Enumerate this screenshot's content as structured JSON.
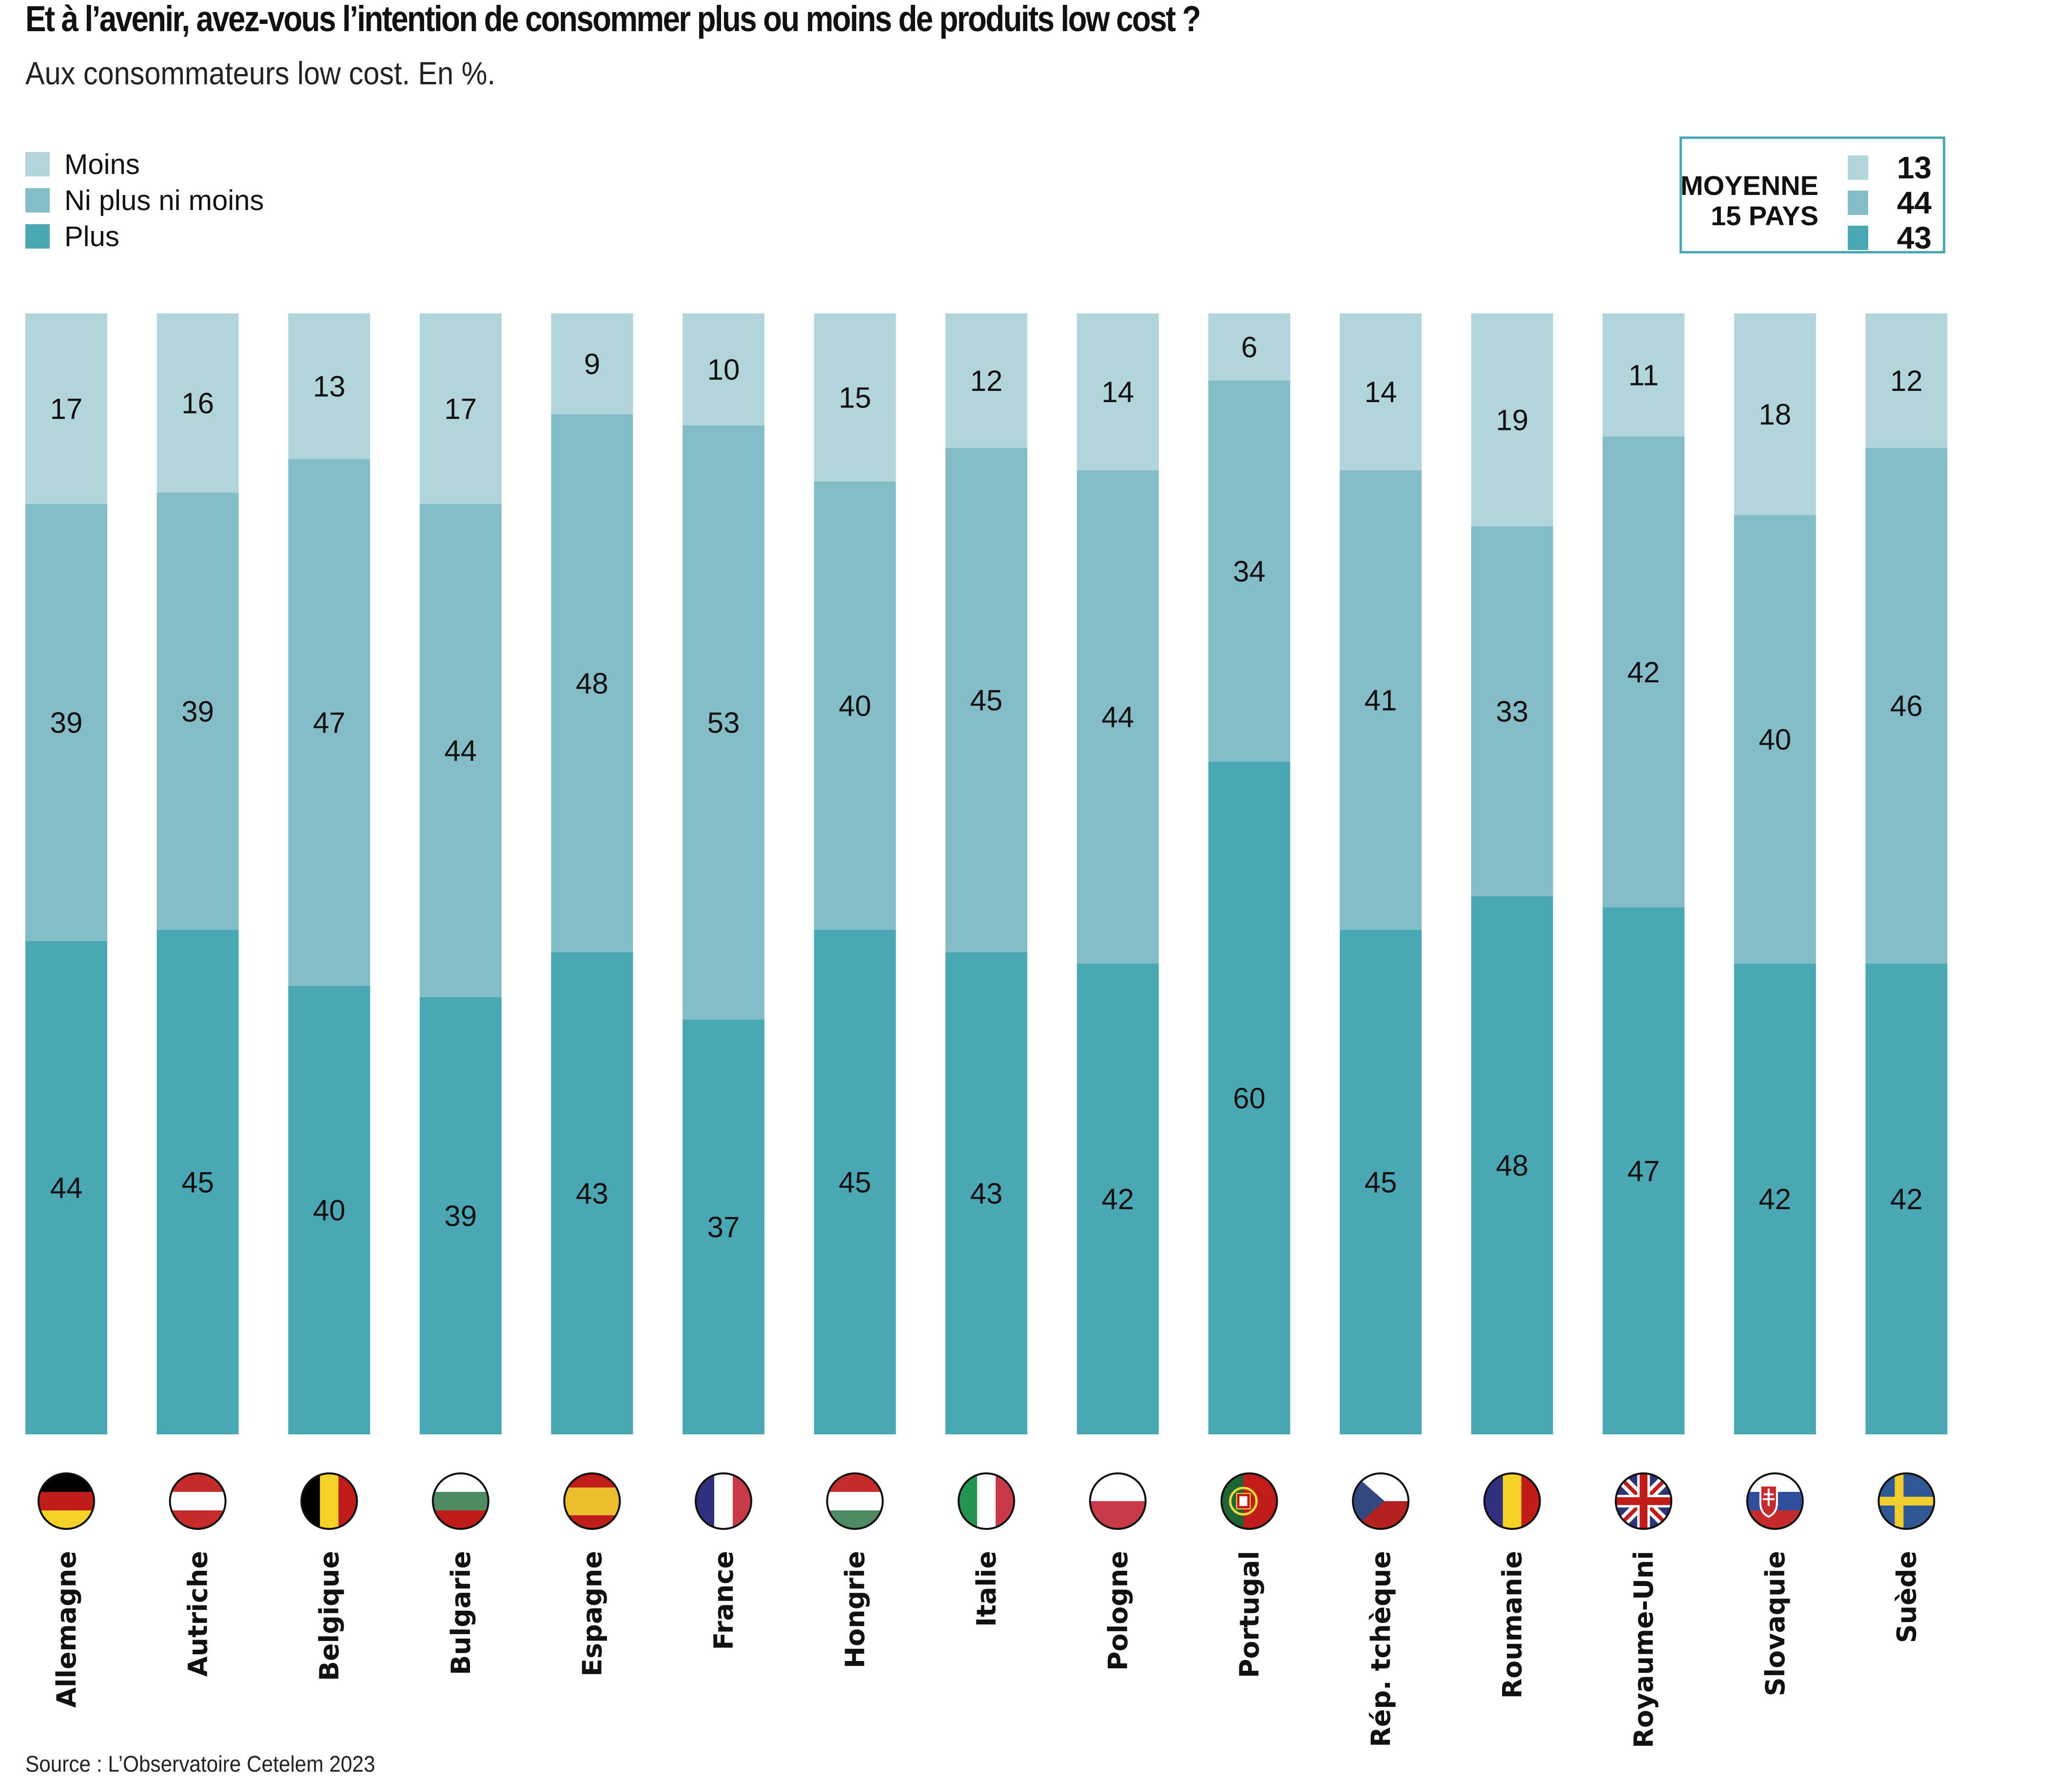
{
  "header": {
    "title": "Et à l’avenir, avez-vous l’intention de consommer plus ou moins de produits low cost ?",
    "subtitle": "Aux consommateurs low cost. En %."
  },
  "legend": [
    {
      "label": "Moins",
      "color": "#b2d5db"
    },
    {
      "label": "Ni plus ni moins",
      "color": "#84bdc7"
    },
    {
      "label": "Plus",
      "color": "#4aa8b5"
    }
  ],
  "average_box": {
    "title_line1": "MOYENNE",
    "title_line2": "15 PAYS",
    "border_color": "#4aa8b5",
    "values": [
      {
        "series": "Moins",
        "value": "13"
      },
      {
        "series": "Ni plus ni moins",
        "value": "44"
      },
      {
        "series": "Plus",
        "value": "43"
      }
    ]
  },
  "footer": {
    "source": "Source : L’Observatoire Cetelem 2023"
  },
  "chart_data": {
    "type": "bar",
    "stacked": true,
    "orientation": "vertical",
    "title": "Et à l’avenir, avez-vous l’intention de consommer plus ou moins de produits low cost ?",
    "subtitle": "Aux consommateurs low cost. En %.",
    "xlabel": "",
    "ylabel": "",
    "ylim": [
      0,
      100
    ],
    "grid": false,
    "legend_position": "top-left",
    "categories": [
      "Allemagne",
      "Autriche",
      "Belgique",
      "Bulgarie",
      "Espagne",
      "France",
      "Hongrie",
      "Italie",
      "Pologne",
      "Portugal",
      "Rép. tchèque",
      "Roumanie",
      "Royaume-Uni",
      "Slovaquie",
      "Suède"
    ],
    "flags": [
      "flag-de",
      "flag-at",
      "flag-be",
      "flag-bg",
      "flag-es",
      "flag-fr",
      "flag-hu",
      "flag-it",
      "flag-pl",
      "flag-pt",
      "flag-cz",
      "flag-ro",
      "flag-gb",
      "flag-sk",
      "flag-se"
    ],
    "series": [
      {
        "name": "Plus",
        "color": "#4aa8b5",
        "values": [
          44,
          45,
          40,
          39,
          43,
          37,
          45,
          43,
          42,
          60,
          45,
          48,
          47,
          42,
          42
        ]
      },
      {
        "name": "Ni plus ni moins",
        "color": "#84bdc7",
        "values": [
          39,
          39,
          47,
          44,
          48,
          53,
          40,
          45,
          44,
          34,
          41,
          33,
          42,
          40,
          46
        ]
      },
      {
        "name": "Moins",
        "color": "#b2d5db",
        "values": [
          17,
          16,
          13,
          17,
          9,
          10,
          15,
          12,
          14,
          6,
          14,
          19,
          11,
          18,
          12
        ]
      }
    ],
    "average_15_countries": {
      "Moins": 13,
      "Ni plus ni moins": 44,
      "Plus": 43
    }
  }
}
